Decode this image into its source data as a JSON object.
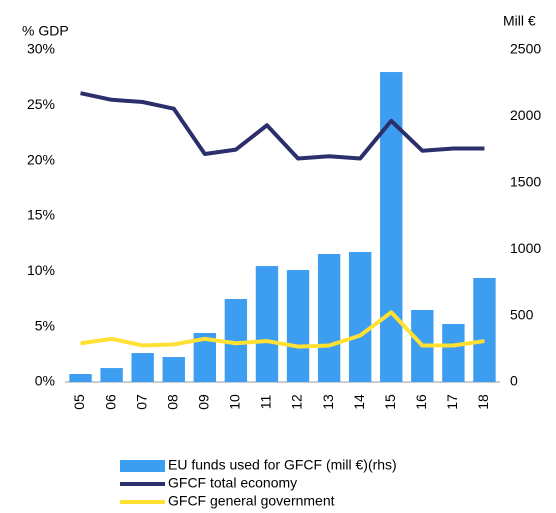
{
  "chart_data": {
    "type": "bar_line",
    "y_label": "% GDP",
    "y2_label": "Mill €",
    "categories": [
      "05",
      "06",
      "07",
      "08",
      "09",
      "10",
      "11",
      "12",
      "13",
      "14",
      "15",
      "16",
      "17",
      "18"
    ],
    "series": [
      {
        "name": "EU funds used for GFCF (mill €)(rhs)",
        "type": "bar",
        "axis": "y2",
        "color": "#3d9df0",
        "values": [
          60,
          105,
          218,
          188,
          369,
          625,
          873,
          843,
          964,
          979,
          2334,
          542,
          437,
          783
        ]
      },
      {
        "name": "GFCF total economy",
        "type": "line",
        "color": "#2b2f6b",
        "values": [
          26.1,
          25.5,
          25.3,
          24.7,
          20.6,
          21.0,
          23.2,
          20.2,
          20.4,
          20.2,
          23.6,
          20.9,
          21.1,
          21.1
        ]
      },
      {
        "name": "GFCF general government",
        "type": "line",
        "color": "#ffe033",
        "values": [
          3.5,
          3.9,
          3.3,
          3.4,
          3.9,
          3.5,
          3.7,
          3.2,
          3.3,
          4.2,
          6.3,
          3.3,
          3.3,
          3.7
        ]
      }
    ],
    "ylim": [
      0,
      30
    ],
    "yticks": [
      {
        "value": 0,
        "label": "0%"
      },
      {
        "value": 5,
        "label": "5%"
      },
      {
        "value": 10,
        "label": "10%"
      },
      {
        "value": 15,
        "label": "15%"
      },
      {
        "value": 20,
        "label": "20%"
      },
      {
        "value": 25,
        "label": "25%"
      },
      {
        "value": 30,
        "label": "30%"
      }
    ],
    "y2lim": [
      0,
      2500
    ],
    "y2ticks": [
      0,
      500,
      1000,
      1500,
      2000,
      2500
    ],
    "legend": "bottom"
  }
}
